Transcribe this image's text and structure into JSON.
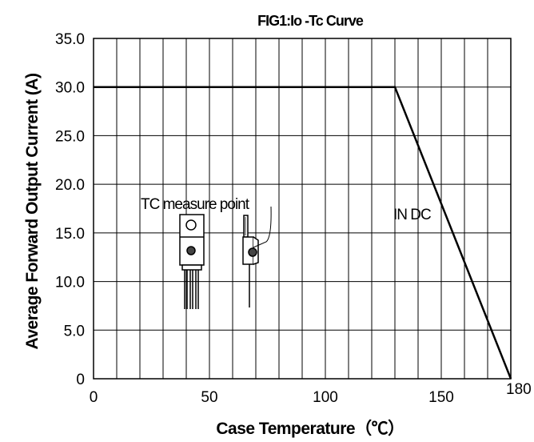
{
  "chart_data": {
    "type": "line",
    "title": "FIG1:Io -Tc Curve",
    "xlabel": "Case Temperature（℃）",
    "ylabel": "Average Forward Output Current (A)",
    "xlim": [
      0,
      180
    ],
    "ylim": [
      0,
      35
    ],
    "x_ticks": [
      "0",
      "50",
      "100",
      "150",
      "180"
    ],
    "y_ticks": [
      "35.0",
      "30.0",
      "25.0",
      "20.0",
      "15.0",
      "10.0",
      "5.0",
      "0"
    ],
    "grid": true,
    "series": [
      {
        "name": "IN DC",
        "x": [
          0,
          130,
          180
        ],
        "y": [
          30,
          30,
          0
        ]
      }
    ],
    "annotations": {
      "series_label": "IN DC",
      "measure_label": "TC measure point"
    }
  }
}
